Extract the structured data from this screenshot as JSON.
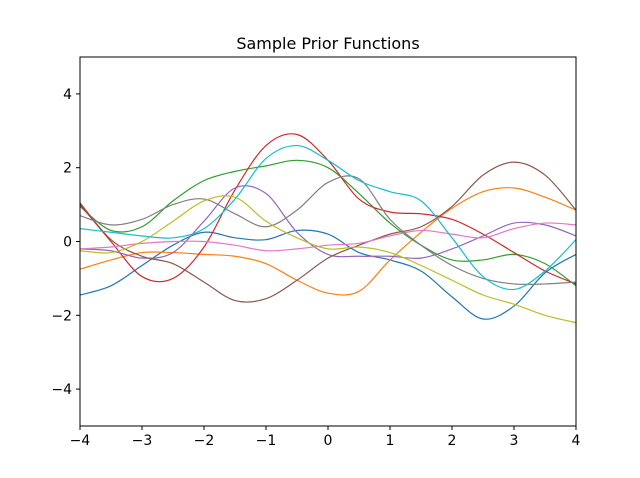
{
  "chart_data": {
    "type": "line",
    "title": "Sample Prior Functions",
    "xlabel": "",
    "ylabel": "",
    "xlim": [
      -4,
      4
    ],
    "ylim": [
      -5,
      5
    ],
    "xticks": [
      -4,
      -3,
      -2,
      -1,
      0,
      1,
      2,
      3,
      4
    ],
    "yticks": [
      -4,
      -2,
      0,
      2,
      4
    ],
    "grid": false,
    "legend": "none",
    "x": [
      -4,
      -3.5,
      -3,
      -2.5,
      -2,
      -1.5,
      -1,
      -0.5,
      0,
      0.5,
      1,
      1.5,
      2,
      2.5,
      3,
      3.5,
      4
    ],
    "series": [
      {
        "color": "#1f77b4",
        "values": [
          -1.45,
          -1.2,
          -0.65,
          -0.1,
          0.25,
          0.1,
          0.05,
          0.3,
          0.2,
          -0.3,
          -0.5,
          -0.8,
          -1.5,
          -2.1,
          -1.75,
          -0.85,
          -0.35
        ]
      },
      {
        "color": "#ff7f0e",
        "values": [
          -0.75,
          -0.5,
          -0.3,
          -0.3,
          -0.35,
          -0.4,
          -0.6,
          -1.05,
          -1.4,
          -1.35,
          -0.5,
          0.25,
          0.9,
          1.35,
          1.45,
          1.2,
          0.85
        ]
      },
      {
        "color": "#2ca02c",
        "values": [
          0.95,
          0.3,
          0.4,
          1.1,
          1.65,
          1.9,
          2.05,
          2.2,
          2.0,
          1.3,
          0.5,
          -0.1,
          -0.5,
          -0.5,
          -0.35,
          -0.6,
          -1.2
        ]
      },
      {
        "color": "#d62728",
        "values": [
          1.0,
          0.0,
          -0.95,
          -1.0,
          -0.15,
          1.4,
          2.6,
          2.9,
          2.2,
          1.15,
          0.8,
          0.75,
          0.6,
          0.2,
          -0.3,
          -0.8,
          -1.15
        ]
      },
      {
        "color": "#9467bd",
        "values": [
          -0.2,
          -0.25,
          -0.45,
          -0.3,
          0.55,
          1.45,
          1.3,
          0.25,
          -0.35,
          -0.4,
          -0.4,
          -0.45,
          -0.2,
          0.15,
          0.5,
          0.45,
          0.15
        ]
      },
      {
        "color": "#8c564b",
        "values": [
          1.05,
          0.05,
          -0.4,
          -0.6,
          -1.1,
          -1.6,
          -1.55,
          -1.05,
          -0.45,
          -0.1,
          0.2,
          0.4,
          0.95,
          1.8,
          2.15,
          1.8,
          0.85
        ]
      },
      {
        "color": "#e377c2",
        "values": [
          -0.2,
          -0.15,
          -0.05,
          0.0,
          0.0,
          -0.1,
          -0.25,
          -0.2,
          -0.1,
          -0.05,
          0.15,
          0.3,
          0.2,
          0.1,
          0.35,
          0.5,
          0.45
        ]
      },
      {
        "color": "#7f7f7f",
        "values": [
          0.7,
          0.45,
          0.6,
          1.0,
          1.15,
          0.75,
          0.4,
          0.85,
          1.6,
          1.7,
          0.6,
          -0.1,
          -0.65,
          -1.0,
          -1.15,
          -1.15,
          -1.1
        ]
      },
      {
        "color": "#bcbd22",
        "values": [
          -0.25,
          -0.3,
          0.0,
          0.55,
          1.1,
          1.2,
          0.55,
          0.1,
          -0.2,
          -0.15,
          -0.3,
          -0.65,
          -1.05,
          -1.45,
          -1.7,
          -2.0,
          -2.2
        ]
      },
      {
        "color": "#17becf",
        "values": [
          0.35,
          0.25,
          0.15,
          0.1,
          0.35,
          1.15,
          2.25,
          2.6,
          2.2,
          1.65,
          1.35,
          1.1,
          0.1,
          -0.95,
          -1.3,
          -0.8,
          0.05
        ]
      }
    ]
  }
}
